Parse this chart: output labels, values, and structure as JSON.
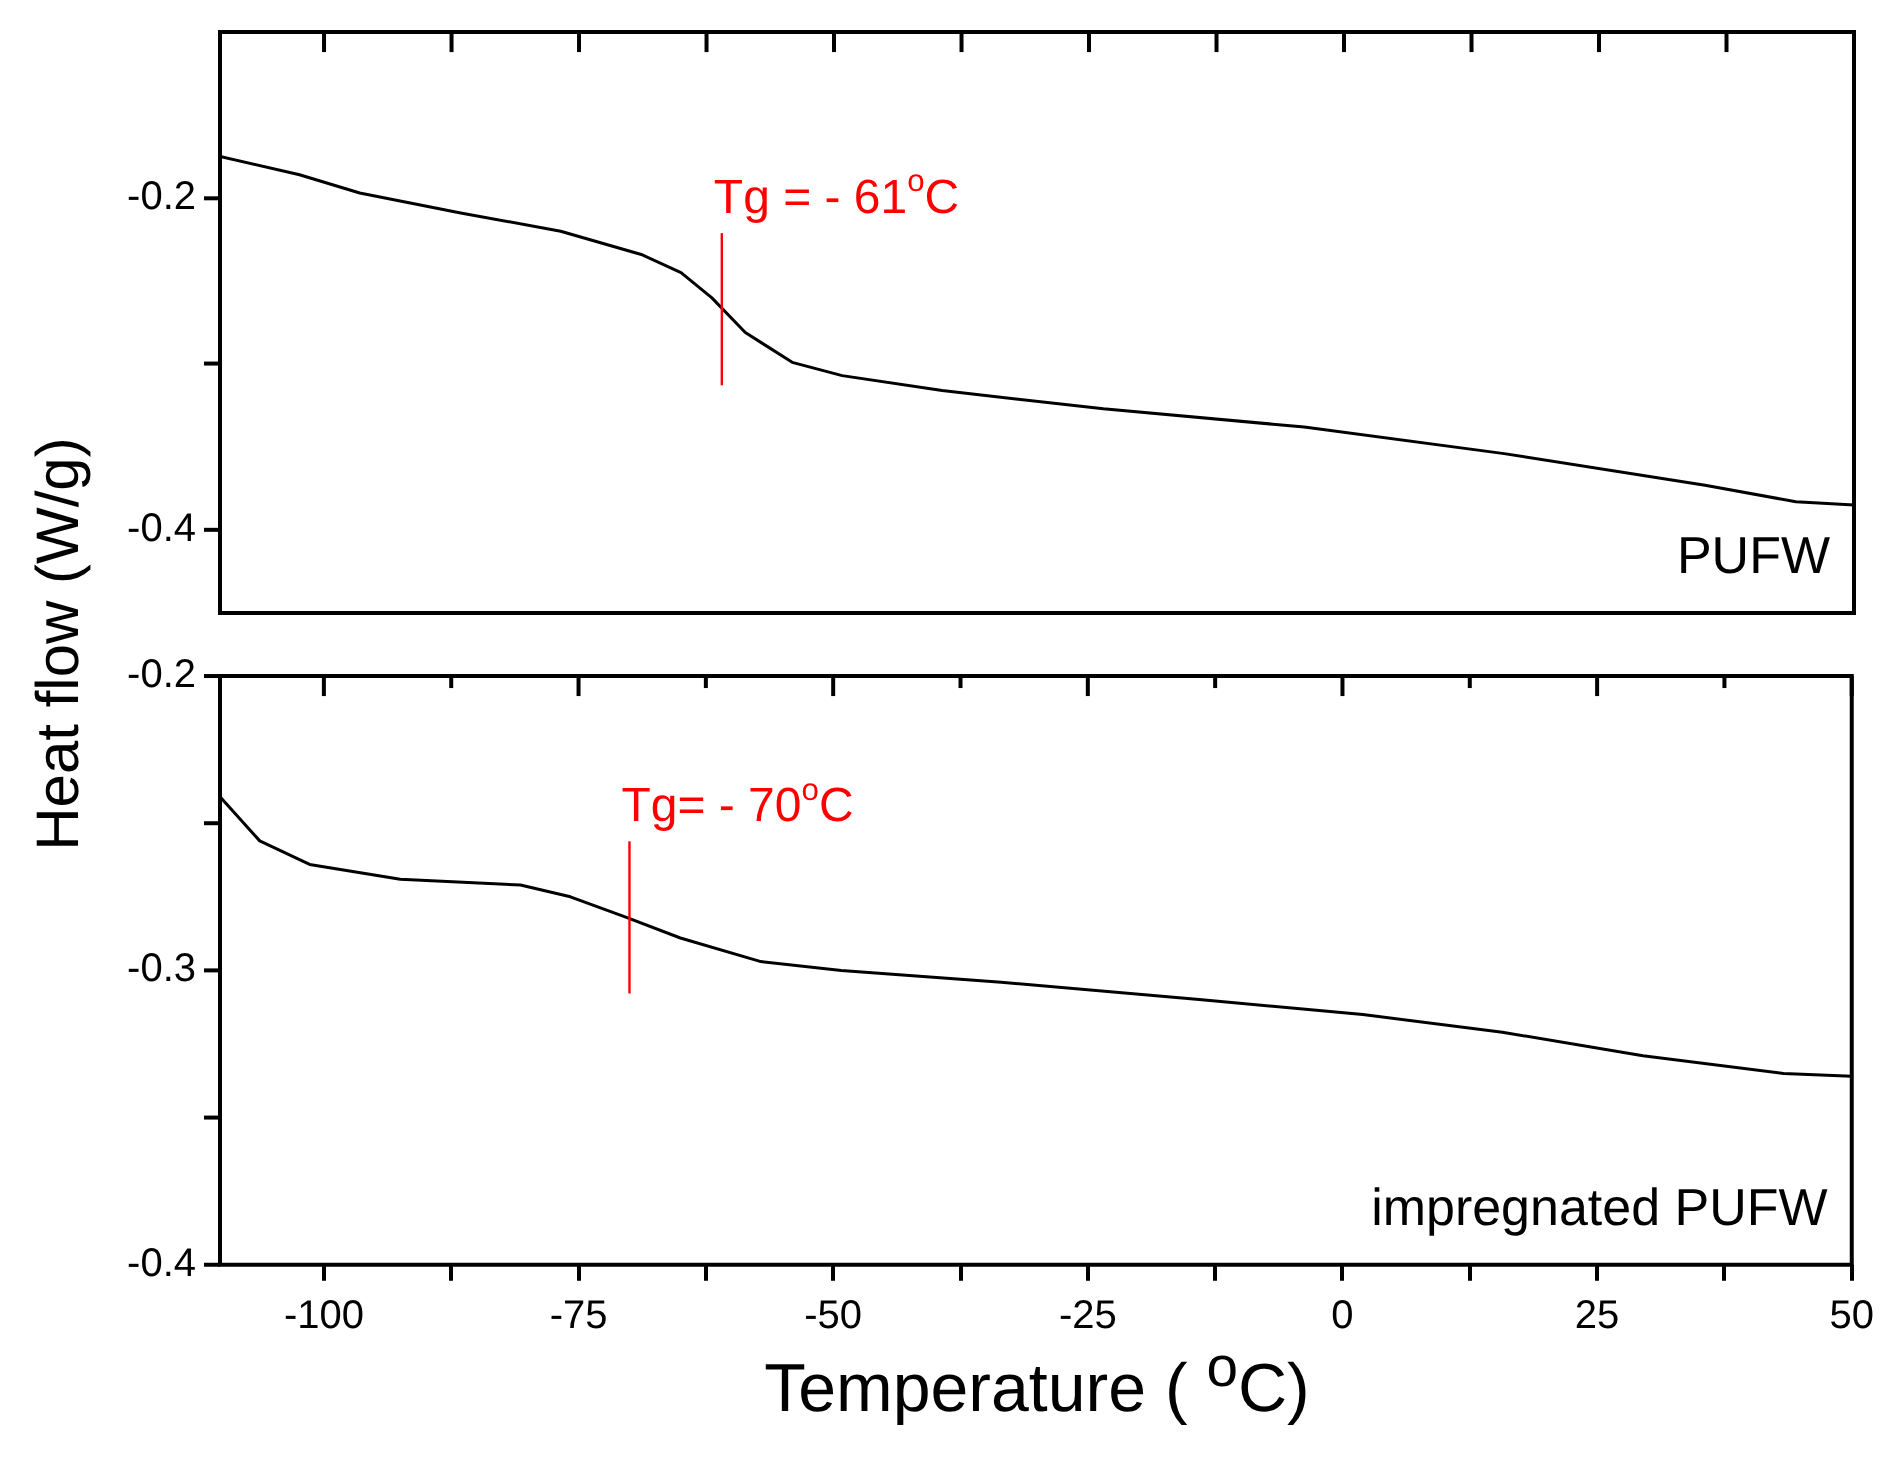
{
  "chart_data": [
    {
      "type": "line",
      "ylabel": "Heat flow (W/g)",
      "tick_labels": "y",
      "x": [
        -110.2,
        -102.4,
        -96.5,
        -86.6,
        -76.8,
        -68.9,
        -65.0,
        -62.0,
        -58.7,
        -54.1,
        -49.2,
        -39.4,
        -23.6,
        -3.9,
        15.7,
        35.4,
        44.3,
        50
      ],
      "series": [
        {
          "color": "#000000",
          "values": [
            -0.175,
            -0.186,
            -0.197,
            -0.209,
            -0.22,
            -0.234,
            -0.245,
            -0.26,
            -0.281,
            -0.299,
            -0.307,
            -0.316,
            -0.327,
            -0.338,
            -0.354,
            -0.373,
            -0.383,
            -0.385
          ]
        }
      ],
      "xlim": [
        -110.2,
        50
      ],
      "ylim": [
        -0.45,
        -0.1
      ],
      "xticks": [
        {
          "value": -100,
          "label": null
        },
        {
          "value": -87.5,
          "label": null
        },
        {
          "value": -75,
          "label": null
        },
        {
          "value": -62.5,
          "label": null
        },
        {
          "value": -50,
          "label": null
        },
        {
          "value": -37.5,
          "label": null
        },
        {
          "value": -25,
          "label": null
        },
        {
          "value": -12.5,
          "label": null
        },
        {
          "value": 0,
          "label": null
        },
        {
          "value": 12.5,
          "label": null
        },
        {
          "value": 25,
          "label": null
        },
        {
          "value": 37.5,
          "label": null
        },
        {
          "value": 50,
          "label": null
        }
      ],
      "yticks": [
        -0.2,
        {
          "value": -0.3,
          "label": null
        },
        -0.4
      ],
      "annotations": [
        {
          "text": "Tg = - 61$^{o}$C",
          "x": -61,
          "y": -0.267
        },
        "PUFW"
      ]
    },
    {
      "type": "line",
      "xlabel": "Temperature ( $^{o}$C)",
      "x": [
        -110.2,
        -106.3,
        -101.4,
        -92.5,
        -80.7,
        -75.8,
        -70.3,
        -65.0,
        -57.1,
        -49.2,
        -33.5,
        -13.8,
        2.0,
        15.7,
        29.5,
        43.3,
        50
      ],
      "series": [
        {
          "color": "#000000",
          "values": [
            -0.241,
            -0.256,
            -0.264,
            -0.269,
            -0.271,
            -0.275,
            -0.282,
            -0.289,
            -0.297,
            -0.3,
            -0.304,
            -0.31,
            -0.315,
            -0.321,
            -0.329,
            -0.335,
            -0.336
          ]
        }
      ],
      "xlim": [
        -110.2,
        50
      ],
      "ylim": [
        -0.4,
        -0.2
      ],
      "xticks": [
        -100,
        {
          "value": -87.5,
          "label": null
        },
        -75,
        {
          "value": -62.5,
          "label": null
        },
        -50,
        {
          "value": -37.5,
          "label": null
        },
        -25,
        {
          "value": -12.5,
          "label": null
        },
        0,
        {
          "value": 12.5,
          "label": null
        },
        25,
        {
          "value": 37.5,
          "label": null
        },
        50
      ],
      "yticks": [
        -0.2,
        {
          "value": -0.25,
          "label": null
        },
        -0.3,
        {
          "value": -0.35,
          "label": null
        },
        -0.4
      ],
      "annotations": [
        {
          "text": "Tg= - 70$^{o}$C",
          "x": -70,
          "y": -0.282
        },
        "impregnated PUFW"
      ]
    }
  ]
}
